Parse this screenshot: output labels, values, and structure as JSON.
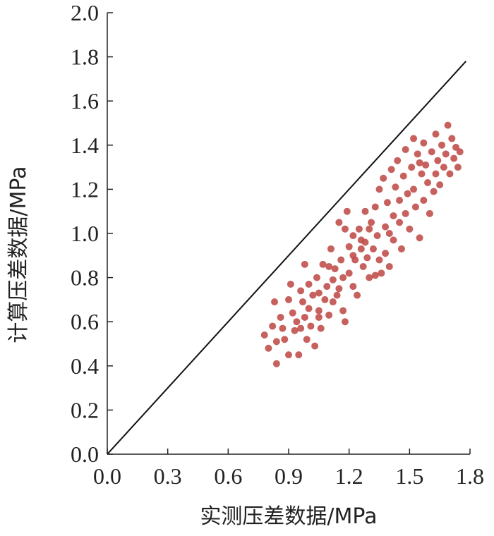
{
  "chart_data": {
    "type": "scatter",
    "xlabel": "实测压差数据/MPa",
    "ylabel": "计算压差数据/MPa",
    "xlim": [
      0,
      1.8
    ],
    "ylim": [
      0,
      2.0
    ],
    "x_ticks": [
      "0.0",
      "0.3",
      "0.6",
      "0.9",
      "1.2",
      "1.5",
      "1.8"
    ],
    "y_ticks": [
      "0.0",
      "0.2",
      "0.4",
      "0.6",
      "0.8",
      "1.0",
      "1.2",
      "1.4",
      "1.6",
      "1.8",
      "2.0"
    ],
    "grid": false,
    "reference_line": {
      "type": "y=x",
      "x": [
        0,
        1.78
      ],
      "y": [
        0,
        1.78
      ]
    },
    "point_color": "#c0504d",
    "series": [
      {
        "points": [
          [
            0.78,
            0.54
          ],
          [
            0.8,
            0.48
          ],
          [
            0.82,
            0.58
          ],
          [
            0.84,
            0.51
          ],
          [
            0.84,
            0.41
          ],
          [
            0.83,
            0.69
          ],
          [
            0.86,
            0.62
          ],
          [
            0.87,
            0.57
          ],
          [
            0.88,
            0.52
          ],
          [
            0.9,
            0.7
          ],
          [
            0.9,
            0.45
          ],
          [
            0.91,
            0.77
          ],
          [
            0.92,
            0.64
          ],
          [
            0.93,
            0.56
          ],
          [
            0.94,
            0.6
          ],
          [
            0.95,
            0.45
          ],
          [
            0.96,
            0.74
          ],
          [
            0.97,
            0.69
          ],
          [
            0.98,
            0.62
          ],
          [
            0.98,
            0.86
          ],
          [
            0.99,
            0.52
          ],
          [
            1.0,
            0.77
          ],
          [
            1.0,
            0.66
          ],
          [
            1.01,
            0.58
          ],
          [
            1.02,
            0.72
          ],
          [
            1.03,
            0.49
          ],
          [
            1.04,
            0.8
          ],
          [
            1.05,
            0.65
          ],
          [
            1.05,
            0.73
          ],
          [
            1.06,
            0.57
          ],
          [
            1.07,
            0.86
          ],
          [
            1.08,
            0.7
          ],
          [
            1.09,
            0.76
          ],
          [
            1.1,
            0.63
          ],
          [
            1.11,
            0.93
          ],
          [
            1.12,
            0.79
          ],
          [
            1.12,
            0.69
          ],
          [
            1.13,
            0.84
          ],
          [
            1.14,
            0.72
          ],
          [
            1.15,
            1.05
          ],
          [
            1.16,
            0.88
          ],
          [
            1.17,
            0.8
          ],
          [
            1.17,
            0.65
          ],
          [
            1.18,
            0.6
          ],
          [
            1.19,
            1.1
          ],
          [
            1.2,
            0.94
          ],
          [
            1.2,
            0.82
          ],
          [
            1.22,
            0.99
          ],
          [
            1.22,
            0.76
          ],
          [
            1.23,
            0.88
          ],
          [
            1.24,
            0.72
          ],
          [
            1.25,
            1.02
          ],
          [
            1.26,
            0.93
          ],
          [
            1.27,
            0.85
          ],
          [
            1.28,
            0.96
          ],
          [
            1.28,
            1.1
          ],
          [
            1.29,
            0.89
          ],
          [
            1.3,
            0.8
          ],
          [
            1.31,
            1.05
          ],
          [
            1.32,
            0.93
          ],
          [
            1.33,
            1.12
          ],
          [
            1.34,
            0.99
          ],
          [
            1.35,
            0.88
          ],
          [
            1.35,
            1.2
          ],
          [
            1.36,
            0.82
          ],
          [
            1.37,
            1.25
          ],
          [
            1.38,
            1.03
          ],
          [
            1.38,
            0.91
          ],
          [
            1.39,
            1.14
          ],
          [
            1.4,
            0.85
          ],
          [
            1.41,
            1.29
          ],
          [
            1.42,
            1.08
          ],
          [
            1.42,
            0.97
          ],
          [
            1.43,
            1.21
          ],
          [
            1.44,
            1.33
          ],
          [
            1.45,
            1.15
          ],
          [
            1.46,
            0.93
          ],
          [
            1.47,
            1.26
          ],
          [
            1.48,
            1.09
          ],
          [
            1.48,
            1.38
          ],
          [
            1.49,
            1.18
          ],
          [
            1.5,
            1.02
          ],
          [
            1.51,
            1.3
          ],
          [
            1.52,
            1.43
          ],
          [
            1.52,
            1.2
          ],
          [
            1.53,
            1.12
          ],
          [
            1.54,
            1.36
          ],
          [
            1.55,
            0.98
          ],
          [
            1.56,
            1.27
          ],
          [
            1.57,
            1.41
          ],
          [
            1.57,
            1.15
          ],
          [
            1.58,
            1.31
          ],
          [
            1.59,
            1.23
          ],
          [
            1.6,
            1.09
          ],
          [
            1.61,
            1.37
          ],
          [
            1.62,
            1.19
          ],
          [
            1.63,
            1.45
          ],
          [
            1.63,
            1.27
          ],
          [
            1.64,
            1.33
          ],
          [
            1.65,
            1.22
          ],
          [
            1.66,
            1.4
          ],
          [
            1.67,
            1.3
          ],
          [
            1.68,
            1.36
          ],
          [
            1.69,
            1.49
          ],
          [
            1.7,
            1.27
          ],
          [
            1.71,
            1.43
          ],
          [
            1.72,
            1.34
          ],
          [
            1.73,
            1.39
          ],
          [
            1.74,
            1.3
          ],
          [
            1.75,
            1.37
          ],
          [
            1.4,
            1.0
          ],
          [
            1.33,
            0.81
          ],
          [
            1.26,
            0.97
          ],
          [
            1.1,
            0.85
          ],
          [
            1.05,
            0.62
          ],
          [
            0.96,
            0.57
          ],
          [
            1.18,
            1.02
          ],
          [
            1.45,
            1.05
          ],
          [
            1.55,
            1.32
          ],
          [
            1.3,
            1.02
          ],
          [
            1.22,
            0.9
          ],
          [
            1.15,
            0.75
          ]
        ]
      }
    ]
  }
}
